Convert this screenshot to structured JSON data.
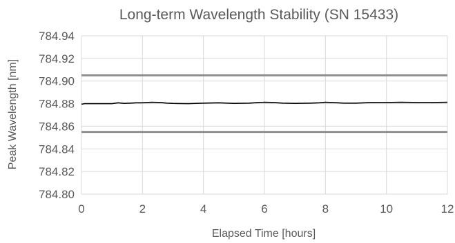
{
  "chart_data": {
    "type": "line",
    "title": "Long-term Wavelength Stability (SN 15433)",
    "xlabel": "Elapsed Time [hours]",
    "ylabel": "Peak Wavelength [nm]",
    "xlim": [
      0,
      12
    ],
    "ylim": [
      784.8,
      784.94
    ],
    "x_ticks": [
      0,
      2,
      4,
      6,
      8,
      10,
      12
    ],
    "y_ticks": [
      "784.80",
      "784.82",
      "784.84",
      "784.86",
      "784.88",
      "784.90",
      "784.92",
      "784.94"
    ],
    "grid": true,
    "legend": "none",
    "series": [
      {
        "color": "#000000",
        "x": [
          0,
          0.1,
          1.0,
          1.2,
          1.4,
          1.6,
          1.8,
          2.0,
          2.3,
          2.6,
          2.8,
          3.0,
          3.5,
          4.0,
          4.5,
          5.0,
          5.5,
          5.8,
          6.0,
          6.3,
          6.6,
          7.0,
          7.5,
          7.8,
          8.0,
          8.2,
          8.4,
          8.6,
          9.0,
          9.5,
          10.0,
          10.5,
          11.0,
          11.5,
          12.0
        ],
        "y": [
          784.8795,
          784.88,
          784.88,
          784.8808,
          784.8802,
          784.8805,
          784.8808,
          784.8808,
          784.8812,
          784.881,
          784.8805,
          784.8802,
          784.88,
          784.8805,
          784.8808,
          784.8802,
          784.8805,
          784.881,
          784.8812,
          784.881,
          784.8805,
          784.8802,
          784.8805,
          784.8808,
          784.8812,
          784.881,
          784.8808,
          784.8805,
          784.8805,
          784.881,
          784.881,
          784.8812,
          784.881,
          784.881,
          784.8812
        ]
      }
    ],
    "limit_lines": [
      {
        "y": 784.905,
        "color": "#909090"
      },
      {
        "y": 784.855,
        "color": "#909090"
      }
    ]
  }
}
